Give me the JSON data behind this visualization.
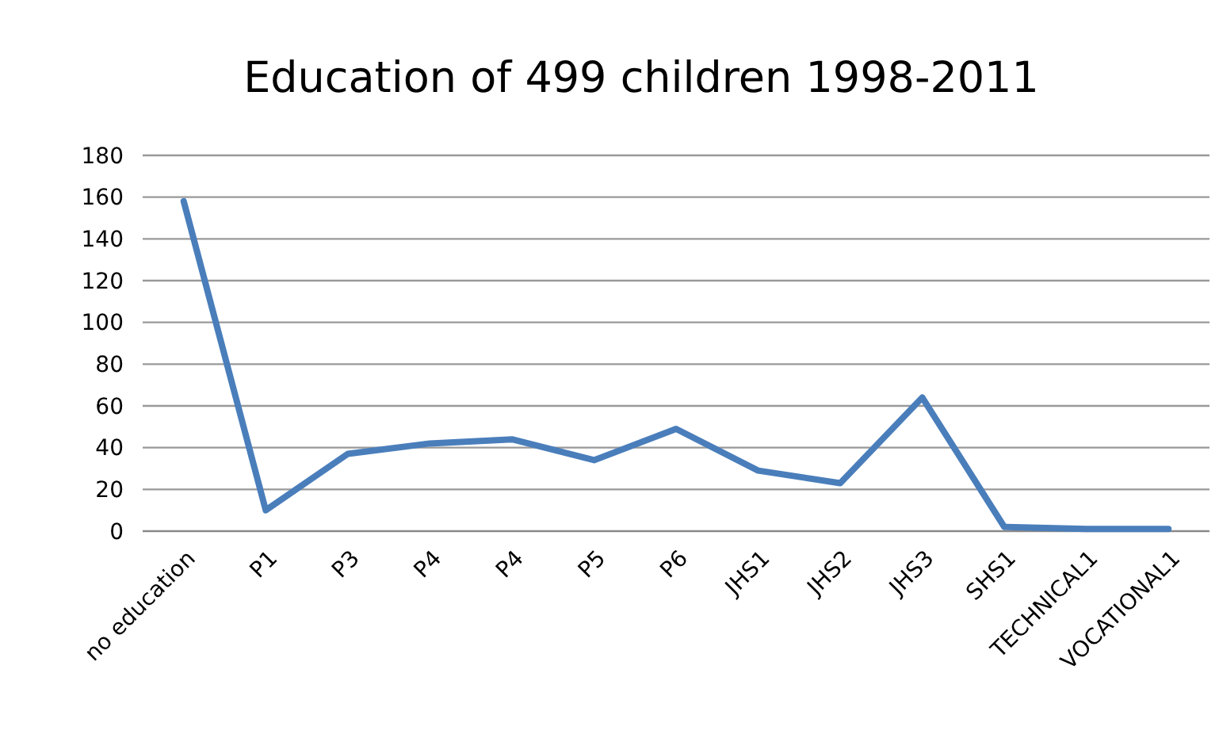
{
  "chart_data": {
    "type": "line",
    "title": "Education of 499 children 1998-2011",
    "categories": [
      "no education",
      "P1",
      "P3",
      "P4",
      "P4",
      "P5",
      "P6",
      "JHS1",
      "JHS2",
      "JHS3",
      "SHS1",
      "TECHNICAL1",
      "VOCATIONAL1"
    ],
    "series": [
      {
        "color": "#4a7ebb",
        "values": [
          158,
          10,
          37,
          42,
          44,
          34,
          49,
          29,
          23,
          64,
          2,
          1,
          1
        ]
      }
    ],
    "ylim": [
      0,
      180
    ],
    "yticks": [
      0,
      20,
      40,
      60,
      80,
      100,
      120,
      140,
      160,
      180
    ],
    "grid": "y",
    "marker": "none",
    "line_style": "solid"
  }
}
